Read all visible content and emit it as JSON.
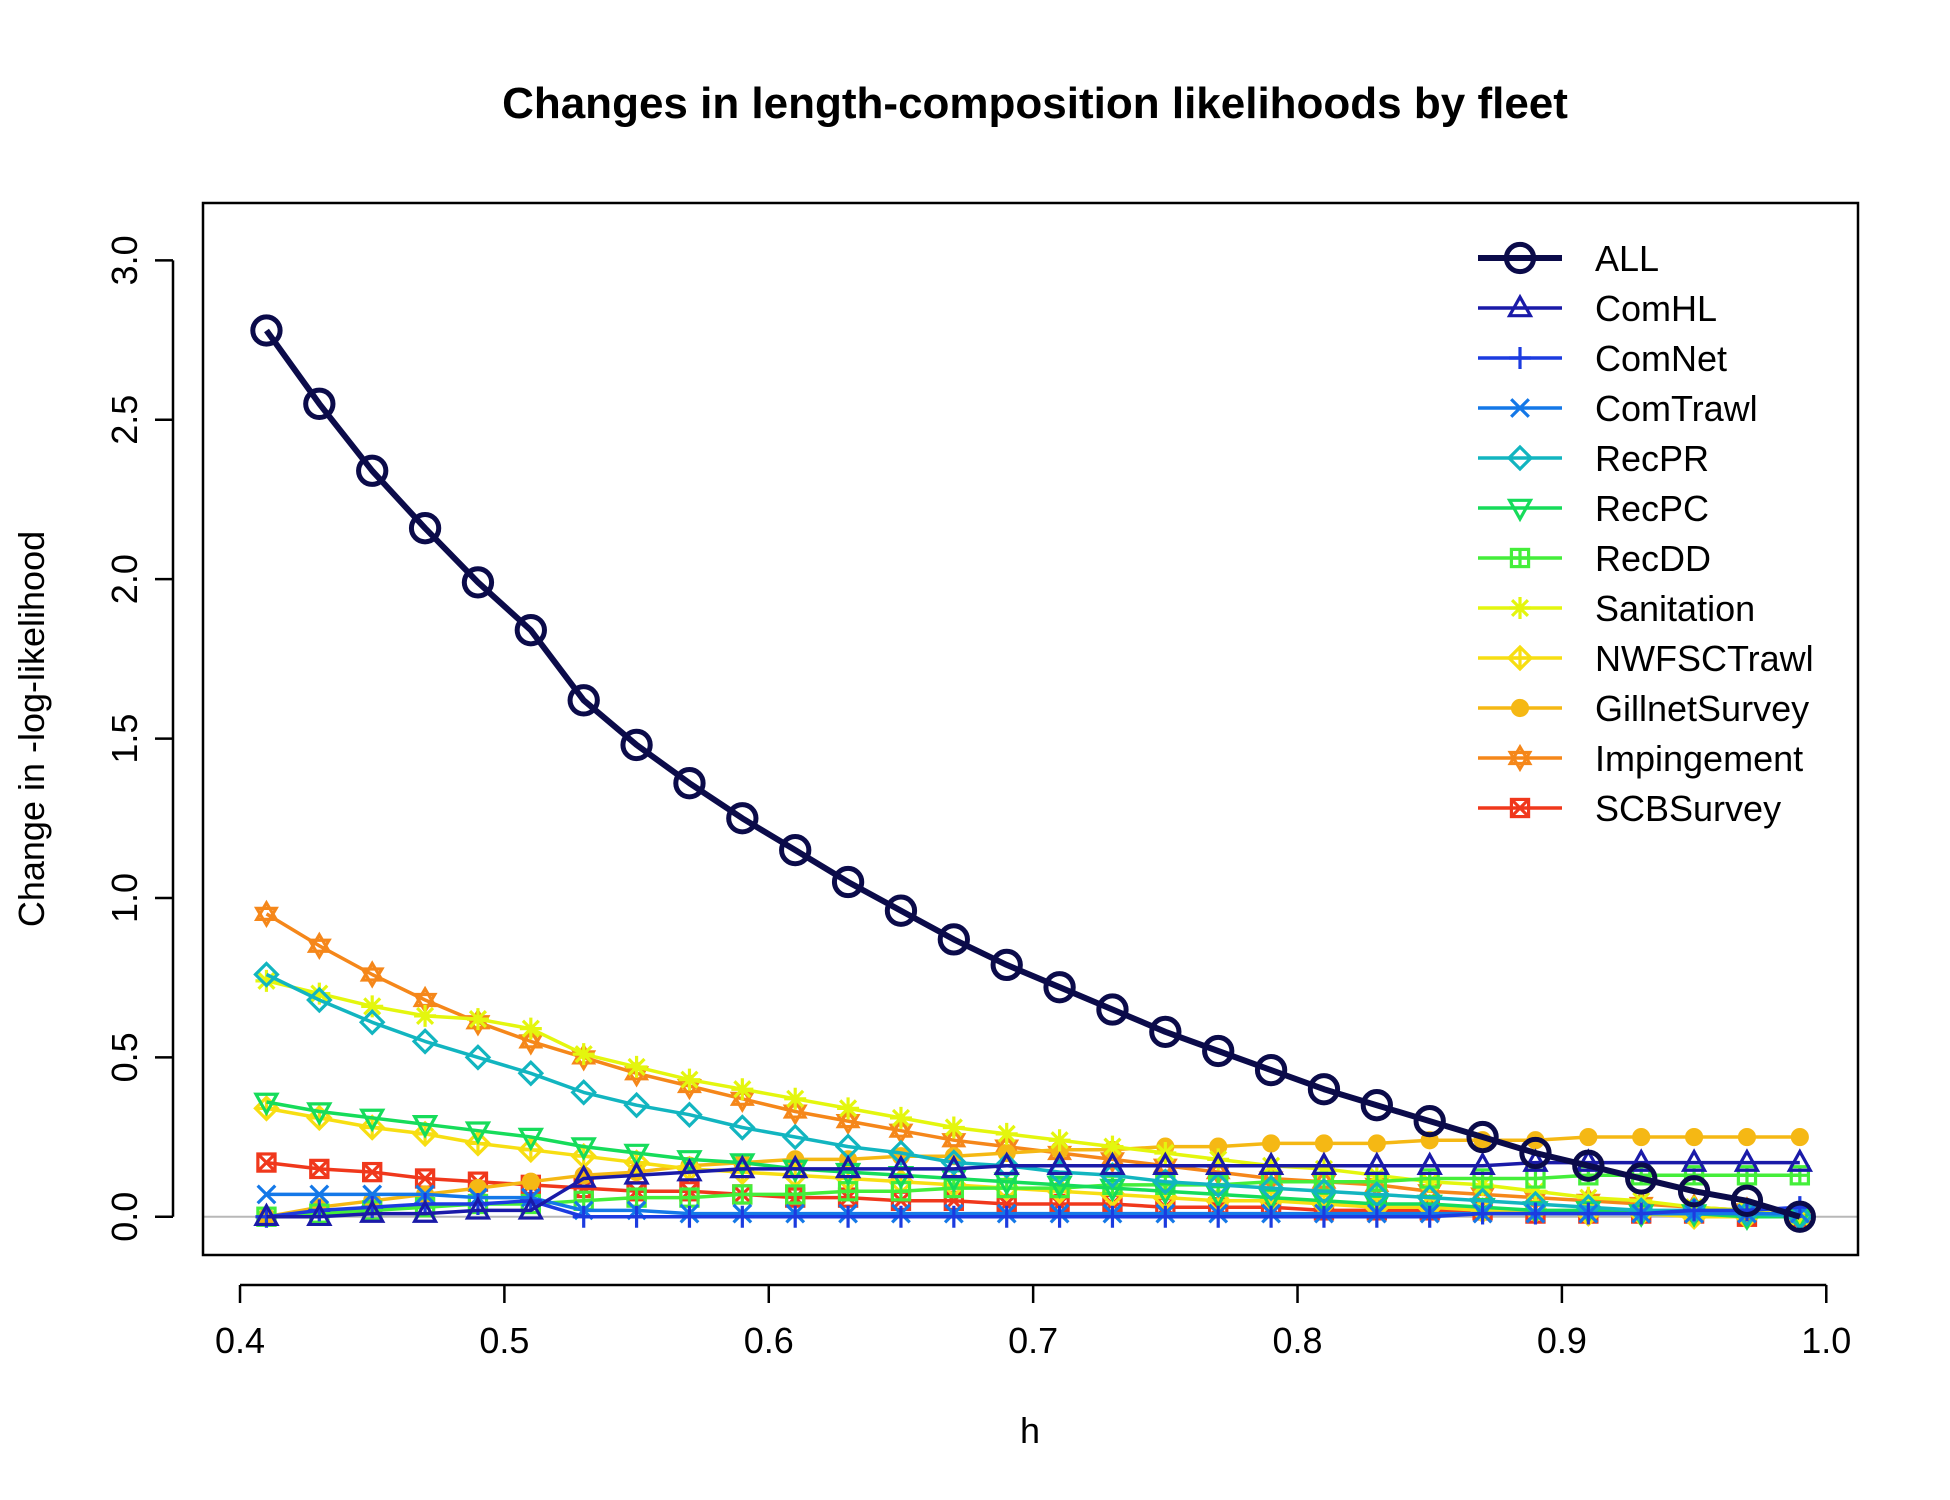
{
  "chart_data": {
    "type": "line",
    "title": "Changes in length-composition likelihoods by fleet",
    "xlabel": "h",
    "ylabel": "Change in -log-likelihood",
    "xlim": [
      0.4,
      1.0
    ],
    "ylim": [
      0.0,
      3.0
    ],
    "xticks": [
      "0.4",
      "0.5",
      "0.6",
      "0.7",
      "0.8",
      "0.9",
      "1.0"
    ],
    "yticks": [
      "0.0",
      "0.5",
      "1.0",
      "1.5",
      "2.0",
      "2.5",
      "3.0"
    ],
    "legend_position": "top-right",
    "x": [
      0.41,
      0.43,
      0.45,
      0.47,
      0.49,
      0.51,
      0.53,
      0.55,
      0.57,
      0.59,
      0.61,
      0.63,
      0.65,
      0.67,
      0.69,
      0.71,
      0.73,
      0.75,
      0.77,
      0.79,
      0.81,
      0.83,
      0.85,
      0.87,
      0.89,
      0.91,
      0.93,
      0.95,
      0.97,
      0.99
    ],
    "series": [
      {
        "name": "ALL",
        "color": "#0b0b4a",
        "marker": "circle",
        "values": [
          2.78,
          2.55,
          2.34,
          2.16,
          1.99,
          1.84,
          1.62,
          1.48,
          1.36,
          1.25,
          1.15,
          1.05,
          0.96,
          0.87,
          0.79,
          0.72,
          0.65,
          0.58,
          0.52,
          0.46,
          0.4,
          0.35,
          0.3,
          0.25,
          0.2,
          0.16,
          0.12,
          0.08,
          0.05,
          0.0
        ]
      },
      {
        "name": "ComHL",
        "color": "#1a1aa8",
        "marker": "triangle-up",
        "values": [
          0.0,
          0.0,
          0.01,
          0.01,
          0.02,
          0.02,
          0.12,
          0.13,
          0.14,
          0.15,
          0.15,
          0.15,
          0.15,
          0.15,
          0.16,
          0.16,
          0.16,
          0.16,
          0.16,
          0.16,
          0.16,
          0.16,
          0.16,
          0.16,
          0.17,
          0.17,
          0.17,
          0.17,
          0.17,
          0.17
        ]
      },
      {
        "name": "ComNet",
        "color": "#1c3be0",
        "marker": "plus",
        "values": [
          0.0,
          0.02,
          0.03,
          0.04,
          0.04,
          0.05,
          0.0,
          0.0,
          0.0,
          0.0,
          0.0,
          0.0,
          0.0,
          0.0,
          0.0,
          0.0,
          0.0,
          0.0,
          0.0,
          0.0,
          0.0,
          0.0,
          0.0,
          0.01,
          0.01,
          0.01,
          0.01,
          0.02,
          0.02,
          0.03
        ]
      },
      {
        "name": "ComTrawl",
        "color": "#1478e8",
        "marker": "cross",
        "values": [
          0.07,
          0.07,
          0.07,
          0.07,
          0.06,
          0.06,
          0.02,
          0.02,
          0.01,
          0.01,
          0.01,
          0.01,
          0.01,
          0.01,
          0.01,
          0.01,
          0.01,
          0.01,
          0.01,
          0.01,
          0.01,
          0.01,
          0.01,
          0.01,
          0.01,
          0.01,
          0.01,
          0.01,
          0.01,
          0.01
        ]
      },
      {
        "name": "RecPR",
        "color": "#12b5c0",
        "marker": "diamond",
        "values": [
          0.76,
          0.68,
          0.61,
          0.55,
          0.5,
          0.45,
          0.39,
          0.35,
          0.32,
          0.28,
          0.25,
          0.22,
          0.2,
          0.17,
          0.16,
          0.14,
          0.13,
          0.11,
          0.1,
          0.09,
          0.08,
          0.07,
          0.06,
          0.05,
          0.04,
          0.03,
          0.02,
          0.02,
          0.01,
          0.0
        ]
      },
      {
        "name": "RecPC",
        "color": "#16dc5a",
        "marker": "triangle-down",
        "values": [
          0.36,
          0.33,
          0.31,
          0.29,
          0.27,
          0.25,
          0.22,
          0.2,
          0.18,
          0.17,
          0.15,
          0.14,
          0.13,
          0.12,
          0.11,
          0.1,
          0.09,
          0.08,
          0.07,
          0.06,
          0.05,
          0.04,
          0.04,
          0.03,
          0.02,
          0.02,
          0.01,
          0.01,
          0.0,
          0.0
        ]
      },
      {
        "name": "RecDD",
        "color": "#44ee3a",
        "marker": "square-plus",
        "values": [
          0.0,
          0.01,
          0.02,
          0.03,
          0.04,
          0.04,
          0.05,
          0.06,
          0.06,
          0.07,
          0.07,
          0.08,
          0.08,
          0.09,
          0.09,
          0.09,
          0.1,
          0.1,
          0.1,
          0.11,
          0.11,
          0.11,
          0.12,
          0.12,
          0.12,
          0.13,
          0.13,
          0.13,
          0.13,
          0.13
        ]
      },
      {
        "name": "Sanitation",
        "color": "#e4f60e",
        "marker": "star",
        "values": [
          0.74,
          0.7,
          0.66,
          0.63,
          0.62,
          0.59,
          0.51,
          0.47,
          0.43,
          0.4,
          0.37,
          0.34,
          0.31,
          0.28,
          0.26,
          0.24,
          0.22,
          0.2,
          0.18,
          0.16,
          0.15,
          0.13,
          0.11,
          0.1,
          0.08,
          0.06,
          0.05,
          0.03,
          0.02,
          0.0
        ]
      },
      {
        "name": "NWFSCTrawl",
        "color": "#f7de12",
        "marker": "diamond-plus",
        "values": [
          0.34,
          0.31,
          0.28,
          0.26,
          0.23,
          0.21,
          0.19,
          0.17,
          0.15,
          0.14,
          0.13,
          0.12,
          0.11,
          0.1,
          0.09,
          0.08,
          0.07,
          0.06,
          0.05,
          0.05,
          0.04,
          0.03,
          0.03,
          0.02,
          0.02,
          0.01,
          0.01,
          0.0,
          0.0,
          0.0
        ]
      },
      {
        "name": "GillnetSurvey",
        "color": "#f5b814",
        "marker": "filled-circle",
        "values": [
          0.0,
          0.03,
          0.05,
          0.07,
          0.09,
          0.11,
          0.13,
          0.14,
          0.16,
          0.17,
          0.18,
          0.18,
          0.19,
          0.19,
          0.2,
          0.21,
          0.21,
          0.22,
          0.22,
          0.23,
          0.23,
          0.23,
          0.24,
          0.24,
          0.24,
          0.25,
          0.25,
          0.25,
          0.25,
          0.25
        ]
      },
      {
        "name": "Impingement",
        "color": "#f5871a",
        "marker": "hexagram",
        "values": [
          0.95,
          0.85,
          0.76,
          0.68,
          0.61,
          0.55,
          0.5,
          0.45,
          0.41,
          0.37,
          0.33,
          0.3,
          0.27,
          0.24,
          0.22,
          0.2,
          0.18,
          0.16,
          0.14,
          0.12,
          0.11,
          0.1,
          0.08,
          0.07,
          0.06,
          0.05,
          0.04,
          0.03,
          0.02,
          0.0
        ]
      },
      {
        "name": "SCBSurvey",
        "color": "#f0381c",
        "marker": "square-x",
        "values": [
          0.17,
          0.15,
          0.14,
          0.12,
          0.11,
          0.1,
          0.09,
          0.08,
          0.08,
          0.07,
          0.06,
          0.06,
          0.05,
          0.05,
          0.04,
          0.04,
          0.04,
          0.03,
          0.03,
          0.03,
          0.02,
          0.02,
          0.02,
          0.02,
          0.01,
          0.01,
          0.01,
          0.01,
          0.0,
          0.0
        ]
      }
    ]
  }
}
